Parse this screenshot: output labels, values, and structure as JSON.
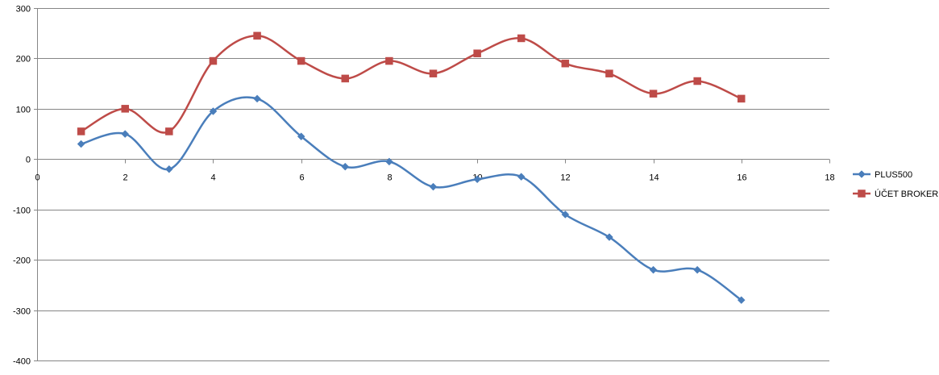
{
  "chart_data": {
    "type": "scatter",
    "title": "",
    "xlabel": "",
    "ylabel": "",
    "xlim": [
      0,
      18
    ],
    "ylim": [
      -400,
      300
    ],
    "x_ticks": [
      0,
      2,
      4,
      6,
      8,
      10,
      12,
      14,
      16,
      18
    ],
    "y_ticks": [
      300,
      200,
      100,
      0,
      -100,
      -200,
      -300,
      -400
    ],
    "grid": "horizontal major gridlines",
    "legend_position": "right",
    "smoothed_lines": true,
    "series": [
      {
        "name": "PLUS500",
        "color": "#4A7EBB",
        "marker": "diamond",
        "x": [
          1,
          2,
          3,
          4,
          5,
          6,
          7,
          8,
          9,
          10,
          11,
          12,
          13,
          14,
          15,
          16
        ],
        "y": [
          30,
          50,
          -20,
          95,
          120,
          45,
          -15,
          -5,
          -55,
          -40,
          -35,
          -110,
          -155,
          -220,
          -220,
          -280
        ]
      },
      {
        "name": "ÚČET BROKER",
        "color": "#BE4B48",
        "marker": "square",
        "x": [
          1,
          2,
          3,
          4,
          5,
          6,
          7,
          8,
          9,
          10,
          11,
          12,
          13,
          14,
          15,
          16
        ],
        "y": [
          55,
          100,
          55,
          195,
          245,
          195,
          160,
          195,
          170,
          210,
          240,
          190,
          170,
          130,
          155,
          120
        ]
      }
    ]
  }
}
